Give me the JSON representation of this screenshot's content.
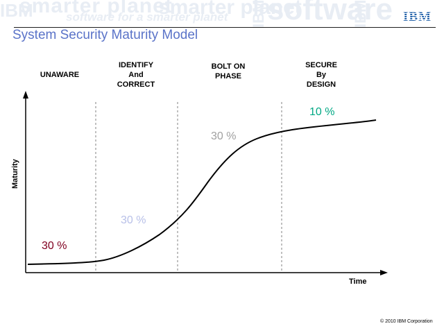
{
  "header": {
    "watermark": {
      "line1": "smarter planet",
      "line2": "software for a smarter planet",
      "line3": "software",
      "line4": "IBM",
      "line5": "IBM"
    },
    "logo": "IBM",
    "brand_color": "#1f5fa8"
  },
  "slide": {
    "title": "System Security Maturity Model",
    "title_color": "#5a73c8"
  },
  "diagram": {
    "phases": [
      {
        "lines": [
          "UNAWARE"
        ]
      },
      {
        "lines": [
          "IDENTIFY",
          "And",
          "CORRECT"
        ]
      },
      {
        "lines": [
          "BOLT ON",
          "PHASE"
        ]
      },
      {
        "lines": [
          "SECURE",
          "By",
          "DESIGN"
        ]
      }
    ],
    "percentages": [
      {
        "label": "30 %",
        "color": "#800020"
      },
      {
        "label": "30 %",
        "color": "#b8c0e8"
      },
      {
        "label": "30 %",
        "color": "#a0a0a0"
      },
      {
        "label": "10 %",
        "color": "#00a884"
      }
    ],
    "y_axis_label": "Maturity",
    "x_axis_label": "Time",
    "curve_description": "S-curve rising from low maturity to high over time"
  },
  "footer": {
    "copyright": "© 2010 IBM Corporation"
  }
}
